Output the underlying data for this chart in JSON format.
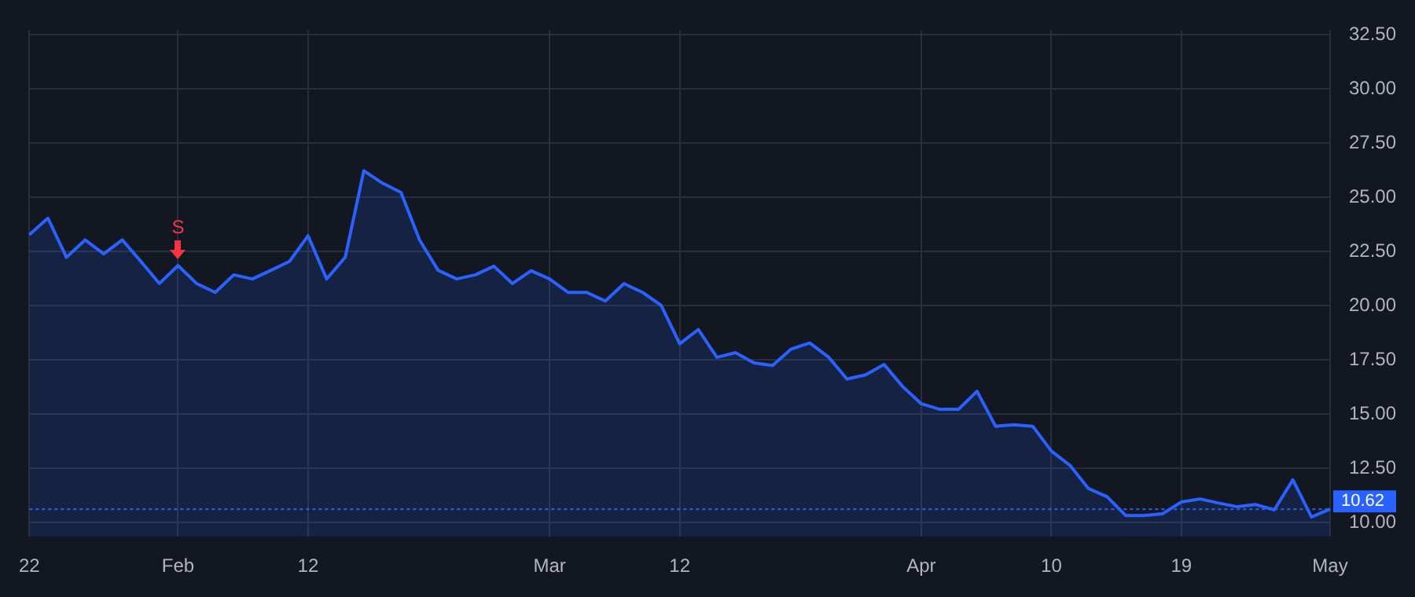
{
  "chart_data": {
    "type": "area",
    "categories": [
      "22",
      null,
      null,
      null,
      null,
      null,
      null,
      null,
      "Feb",
      null,
      null,
      null,
      null,
      null,
      null,
      "12",
      null,
      null,
      null,
      null,
      null,
      null,
      null,
      null,
      null,
      null,
      null,
      null,
      "Mar",
      null,
      null,
      null,
      null,
      null,
      null,
      "12",
      null,
      null,
      null,
      null,
      null,
      null,
      null,
      null,
      null,
      null,
      null,
      null,
      "Apr",
      null,
      null,
      null,
      null,
      null,
      null,
      "10",
      null,
      null,
      null,
      null,
      null,
      null,
      "19",
      null,
      null,
      null,
      null,
      null,
      null,
      null,
      "May"
    ],
    "series": [
      {
        "color": "#2962ff",
        "values": [
          23.27,
          24.03,
          22.23,
          23.03,
          22.39,
          23.03,
          22.04,
          21.02,
          21.85,
          21.02,
          20.61,
          21.42,
          21.23,
          21.63,
          22.04,
          23.22,
          21.23,
          22.23,
          26.22,
          25.65,
          25.22,
          23.03,
          21.63,
          21.23,
          21.42,
          21.82,
          21.02,
          21.61,
          21.23,
          20.61,
          20.61,
          20.21,
          21.02,
          20.61,
          20.02,
          18.24,
          18.9,
          17.62,
          17.83,
          17.36,
          17.24,
          18.0,
          18.28,
          17.64,
          16.62,
          16.81,
          17.29,
          16.27,
          15.48,
          15.22,
          15.22,
          16.05,
          14.44,
          14.51,
          14.44,
          13.3,
          12.64,
          11.57,
          11.19,
          10.33,
          10.33,
          10.41,
          10.95,
          11.09,
          10.9,
          10.73,
          10.83,
          10.59,
          11.97,
          10.26,
          10.62
        ]
      }
    ],
    "ylim": [
      9.35,
      32.7
    ],
    "yticks": [
      {
        "value": 10,
        "label": "10.00"
      },
      {
        "value": 12.5,
        "label": "12.50"
      },
      {
        "value": 15,
        "label": "15.00"
      },
      {
        "value": 17.5,
        "label": "17.50"
      },
      {
        "value": 20,
        "label": "20.00"
      },
      {
        "value": 22.5,
        "label": "22.50"
      },
      {
        "value": 25,
        "label": "25.00"
      },
      {
        "value": 27.5,
        "label": "27.50"
      },
      {
        "value": 30,
        "label": "30.00"
      },
      {
        "value": 32.5,
        "label": "32.50"
      }
    ],
    "grid": true,
    "ref_lines": [
      {
        "axis": "y",
        "value": 10.62,
        "label": "10.62",
        "color": "#2962ff",
        "line_style": "dotted"
      }
    ],
    "annotations": [
      {
        "text": "S",
        "x": "Feb",
        "y": 21.85
      }
    ]
  }
}
